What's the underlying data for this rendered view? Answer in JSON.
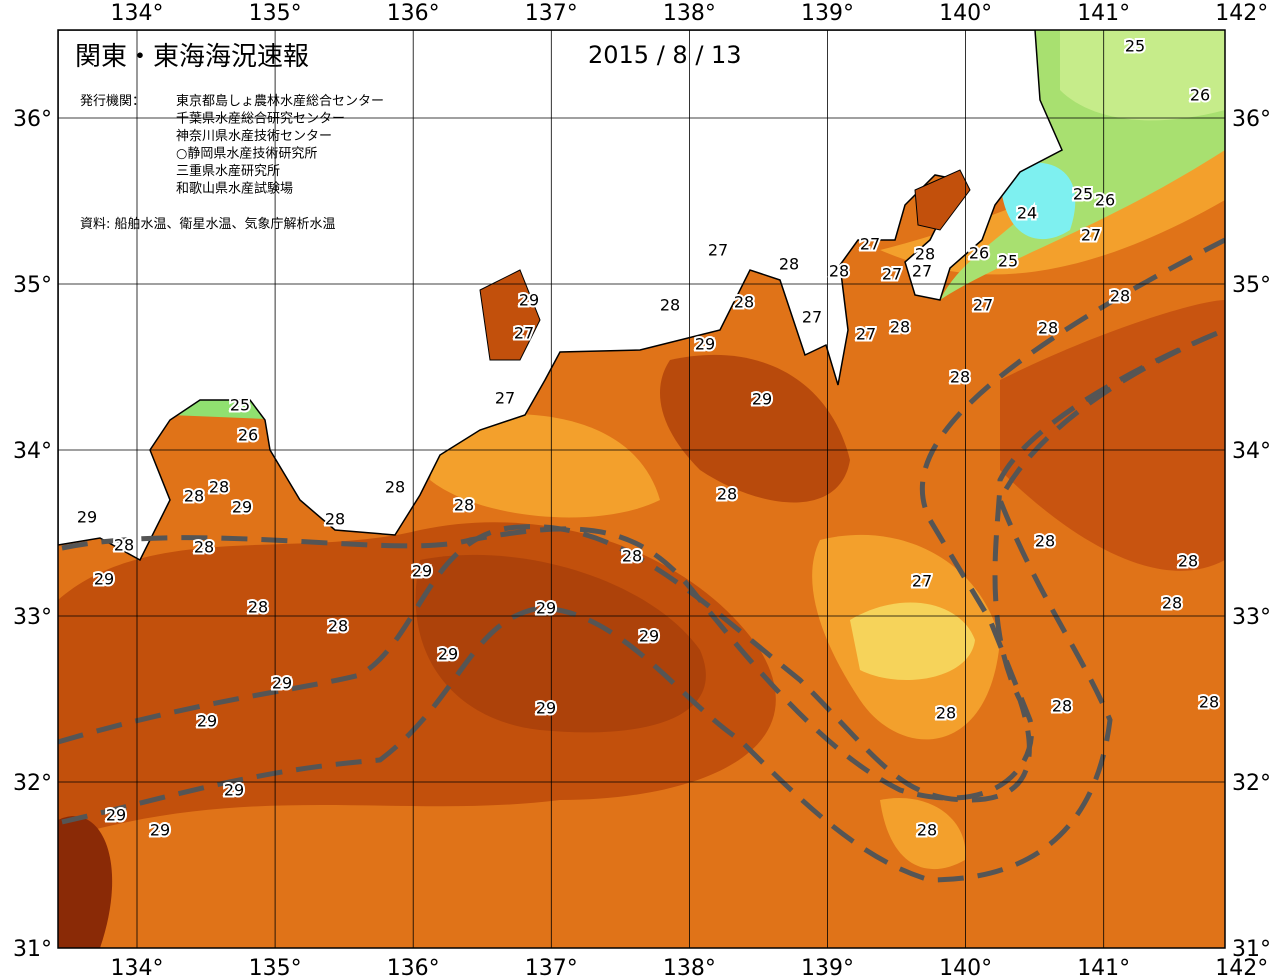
{
  "header": {
    "title": "関東・東海海況速報",
    "date": "2015 / 8 / 13",
    "issuer_label": "発行機関：",
    "issuers": [
      "東京都島しょ農林水産総合センター",
      "千葉県水産総合研究センター",
      "神奈川県水産技術センター",
      "○静岡県水産技術研究所",
      "三重県水産研究所",
      "和歌山県水産試験場"
    ],
    "source": "資料: 船舶水温、衛星水温、気象庁解析水温"
  },
  "axes": {
    "lon_labels": [
      "134°",
      "135°",
      "136°",
      "137°",
      "138°",
      "139°",
      "140°",
      "141°",
      "142°"
    ],
    "lat_labels": [
      "36°",
      "35°",
      "34°",
      "33°",
      "32°",
      "31°"
    ]
  },
  "contour_labels": [
    25,
    26,
    24,
    25,
    26,
    27,
    27,
    28,
    27,
    28,
    28,
    27,
    27,
    26,
    25,
    28,
    27,
    28,
    28,
    27,
    27,
    28,
    28,
    29,
    27,
    29,
    28,
    27,
    29,
    25,
    26,
    28,
    28,
    28,
    28,
    28,
    29,
    28,
    29,
    28,
    28,
    28,
    28,
    28,
    29,
    29,
    27,
    28,
    28,
    29,
    28,
    29,
    29,
    29,
    29,
    28,
    28,
    28,
    29,
    29,
    29,
    29,
    28
  ]
}
